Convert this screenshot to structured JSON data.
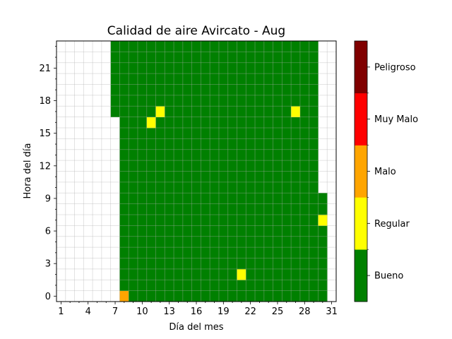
{
  "chart_data": {
    "type": "heatmap",
    "title": "Calidad de aire Avircato - Aug",
    "xlabel": "Día del mes",
    "ylabel": "Hora del día",
    "x_range": [
      1,
      31
    ],
    "y_range": [
      0,
      23
    ],
    "x_ticks": [
      "1",
      "4",
      "7",
      "10",
      "13",
      "16",
      "19",
      "22",
      "25",
      "28",
      "31"
    ],
    "y_ticks": [
      "0",
      "3",
      "6",
      "9",
      "12",
      "15",
      "18",
      "21"
    ],
    "grid": true,
    "categories": [
      {
        "name": "Bueno",
        "color": "#008000"
      },
      {
        "name": "Regular",
        "color": "#ffff00"
      },
      {
        "name": "Malo",
        "color": "#ffa500"
      },
      {
        "name": "Muy Malo",
        "color": "#ff0000"
      },
      {
        "name": "Peligroso",
        "color": "#800000"
      }
    ],
    "default_category": "Bueno",
    "coverage": [
      {
        "days": [
          7,
          7
        ],
        "hours": [
          17,
          23
        ]
      },
      {
        "days": [
          8,
          29
        ],
        "hours": [
          0,
          23
        ]
      },
      {
        "days": [
          30,
          30
        ],
        "hours": [
          0,
          9
        ]
      }
    ],
    "exceptions": [
      {
        "day": 8,
        "hour": 0,
        "category": "Malo"
      },
      {
        "day": 21,
        "hour": 2,
        "category": "Regular"
      },
      {
        "day": 30,
        "hour": 7,
        "category": "Regular"
      },
      {
        "day": 11,
        "hour": 16,
        "category": "Regular"
      },
      {
        "day": 12,
        "hour": 17,
        "category": "Regular"
      },
      {
        "day": 27,
        "hour": 17,
        "category": "Regular"
      }
    ]
  }
}
